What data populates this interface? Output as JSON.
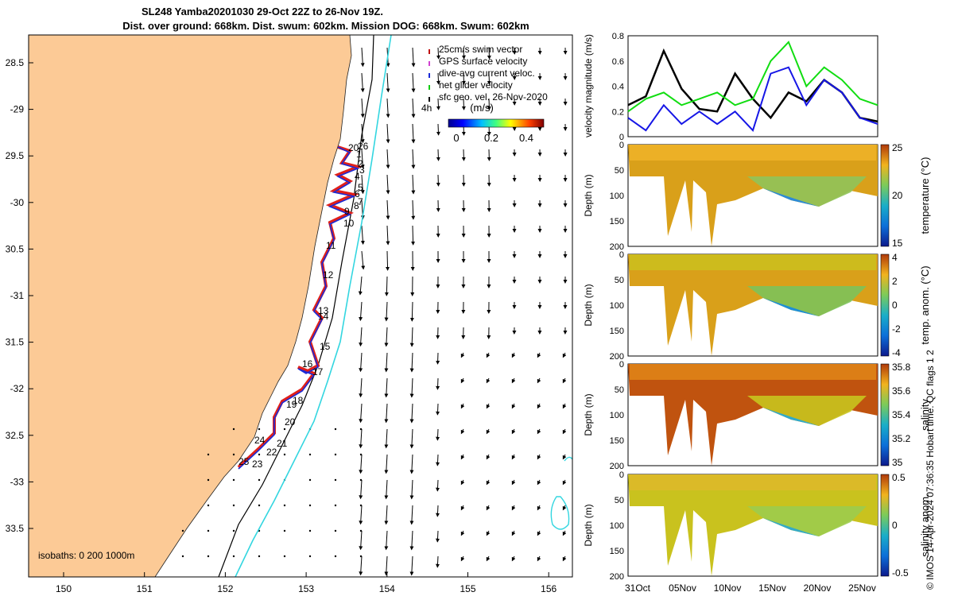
{
  "title_line1": "SL248 Yamba20201030 29-Oct 22Z to 26-Nov 19Z.",
  "title_line2": "Dist. over ground: 668km. Dist. swum: 602km. Mission DOG: 668km. Swum: 602km",
  "credit": "© IMOS 14-Apr-2024 07:36:35 Hobart time. QC flags 1  2",
  "colors": {
    "land": "#fcca96",
    "track_red": "#e0201a",
    "track_blue": "#1a2ad8",
    "isobath_cyan": "#33d6e0",
    "speed_black": "#000000",
    "speed_green": "#11dd11",
    "speed_blue": "#1616e6"
  },
  "map": {
    "lon_ticks": [
      "150",
      "151",
      "152",
      "153",
      "154",
      "155",
      "156"
    ],
    "lat_ticks": [
      "28.5",
      "-29",
      "29.5",
      "-30",
      "30.5",
      "-31",
      "31.5",
      "-32",
      "32.5",
      "-33",
      "33.5"
    ],
    "isobaths_label": "isobaths: 0   200  1000m",
    "legend": [
      "25cm/s swim vector",
      "GPS surface velocity",
      "dive-avg current veloc.",
      "net glider velocity",
      "sfc geo. vel. 26-Nov-2020"
    ],
    "legend_colors": [
      "#c01010",
      "#d040d0",
      "#1a2ad8",
      "#11cc11",
      "#000000"
    ],
    "colorbar_title": "(m/s)",
    "colorbar_ticks": [
      "0",
      "0.2",
      "0.4"
    ],
    "interval_label": "4h",
    "day_labels": [
      "20",
      "1",
      "2",
      "3",
      "4",
      "5",
      "6",
      "7",
      "8",
      "9",
      "10",
      "11",
      "12",
      "13",
      "14",
      "15",
      "16",
      "17",
      "18",
      "19",
      "20",
      "21",
      "22",
      "23",
      "24",
      "25",
      "26"
    ]
  },
  "chart_data": [
    {
      "type": "line",
      "title": "",
      "ylabel": "velocity magnitude (m/s)",
      "ylim": [
        0,
        0.8
      ],
      "yticks": [
        "0",
        "0.2",
        "0.4",
        "0.6",
        "0.8"
      ],
      "x_days": [
        0,
        2,
        4,
        6,
        8,
        10,
        12,
        14,
        16,
        18,
        20,
        22,
        24,
        26,
        28
      ],
      "series": [
        {
          "name": "sfc geo. vel.",
          "values": [
            0.25,
            0.32,
            0.68,
            0.38,
            0.22,
            0.2,
            0.5,
            0.3,
            0.15,
            0.35,
            0.28,
            0.45,
            0.35,
            0.15,
            0.12
          ]
        },
        {
          "name": "net glider velocity",
          "values": [
            0.2,
            0.3,
            0.35,
            0.25,
            0.3,
            0.35,
            0.25,
            0.3,
            0.6,
            0.75,
            0.4,
            0.55,
            0.45,
            0.3,
            0.25
          ]
        },
        {
          "name": "dive-avg current veloc.",
          "values": [
            0.15,
            0.05,
            0.25,
            0.1,
            0.2,
            0.1,
            0.2,
            0.05,
            0.5,
            0.55,
            0.25,
            0.45,
            0.35,
            0.15,
            0.1
          ]
        }
      ]
    },
    {
      "type": "heatmap",
      "ylabel": "Depth (m)",
      "yticks": [
        "0",
        "50",
        "100",
        "150",
        "200"
      ],
      "colorbar_label": "temperature (°C)",
      "colorbar_ticks": [
        "25",
        "20",
        "15"
      ]
    },
    {
      "type": "heatmap",
      "ylabel": "Depth (m)",
      "yticks": [
        "0",
        "50",
        "100",
        "150",
        "200"
      ],
      "colorbar_label": "temp. anom. (°C)",
      "colorbar_ticks": [
        "4",
        "2",
        "0",
        "-2",
        "-4"
      ]
    },
    {
      "type": "heatmap",
      "ylabel": "Depth (m)",
      "yticks": [
        "0",
        "50",
        "100",
        "150",
        "200"
      ],
      "colorbar_label": "salinity",
      "colorbar_ticks": [
        "35.8",
        "35.6",
        "35.4",
        "35.2",
        "35"
      ]
    },
    {
      "type": "heatmap",
      "ylabel": "Depth (m)",
      "yticks": [
        "0",
        "50",
        "100",
        "150",
        "200"
      ],
      "colorbar_label": "salinity anom.",
      "colorbar_ticks": [
        "0.5",
        "0",
        "-0.5"
      ]
    }
  ],
  "time_axis_labels": [
    "31Oct",
    "05Nov",
    "10Nov",
    "15Nov",
    "20Nov",
    "25Nov"
  ]
}
